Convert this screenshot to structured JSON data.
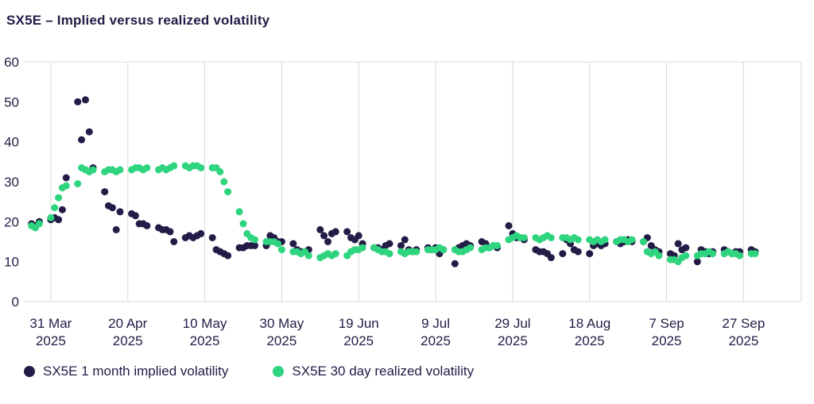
{
  "page": {
    "background": "#ffffff"
  },
  "chart_data": {
    "type": "scatter",
    "title": "SX5E – Implied versus realized volatility",
    "title_color": "#221c46",
    "axis_label_color": "#221c46",
    "grid_color": "#d9d9d9",
    "ylim": [
      0,
      60
    ],
    "y_ticks": [
      0,
      10,
      20,
      30,
      40,
      50,
      60
    ],
    "x_domain": [
      "2025-03-24",
      "2025-10-12"
    ],
    "x_ticks": [
      {
        "date": "2025-03-31",
        "line1": "31 Mar",
        "line2": "2025"
      },
      {
        "date": "2025-04-20",
        "line1": "20 Apr",
        "line2": "2025"
      },
      {
        "date": "2025-05-10",
        "line1": "10 May",
        "line2": "2025"
      },
      {
        "date": "2025-05-30",
        "line1": "30 May",
        "line2": "2025"
      },
      {
        "date": "2025-06-19",
        "line1": "19 Jun",
        "line2": "2025"
      },
      {
        "date": "2025-07-09",
        "line1": "9 Jul",
        "line2": "2025"
      },
      {
        "date": "2025-07-29",
        "line1": "29 Jul",
        "line2": "2025"
      },
      {
        "date": "2025-08-18",
        "line1": "18 Aug",
        "line2": "2025"
      },
      {
        "date": "2025-09-07",
        "line1": "7 Sep",
        "line2": "2025"
      },
      {
        "date": "2025-09-27",
        "line1": "27 Sep",
        "line2": "2025"
      }
    ],
    "grid": "vertical-only",
    "legend_position": "bottom-left",
    "marker_radius": 4.5,
    "series_start_date": "2025-03-26",
    "frequency": "weekdays",
    "series": [
      {
        "name": "SX5E 1 month implied volatility",
        "color": "#221c46",
        "values": [
          19.5,
          19,
          20,
          20.5,
          21,
          20.5,
          23,
          31,
          50,
          40.5,
          50.5,
          42.5,
          33.5,
          27.5,
          24,
          23.5,
          18,
          22.5,
          22,
          21.5,
          19.5,
          19.5,
          19,
          18.5,
          18,
          18,
          17.5,
          15,
          16,
          16.5,
          16,
          16.5,
          17,
          16,
          13,
          12.5,
          12,
          11.5,
          13.5,
          13.5,
          14,
          14,
          14,
          14,
          16.5,
          16,
          15,
          15,
          14.5,
          13,
          12.5,
          12.5,
          13,
          18,
          16.5,
          15,
          17,
          17.5,
          17.5,
          16,
          15.5,
          16.5,
          14.5,
          13.5,
          13.5,
          13,
          14,
          14.5,
          14,
          15.5,
          13,
          12.5,
          13,
          13.5,
          13,
          13.5,
          12,
          13,
          9.5,
          13.5,
          14,
          14.5,
          14,
          15,
          14.5,
          13.5,
          14,
          13.5,
          19,
          17,
          16,
          16,
          15.5,
          13,
          12.5,
          12.5,
          12,
          11,
          12,
          15.5,
          14.5,
          13,
          12.5,
          12,
          14,
          14.5,
          14,
          14.5,
          15,
          14.5,
          15,
          15.5,
          15,
          15,
          16,
          14,
          13,
          12.5,
          12,
          11.5,
          14.5,
          13,
          13.5,
          10,
          13,
          12.5,
          12,
          12.5,
          13,
          12.5,
          12,
          12.5,
          12.5,
          13,
          12.5
        ]
      },
      {
        "name": "SX5E 30 day realized volatility",
        "color": "#2ed47e",
        "values": [
          19,
          18.5,
          19.5,
          21,
          23.5,
          26,
          28.5,
          29,
          29.5,
          33.5,
          33,
          32.5,
          33,
          32.5,
          33,
          33,
          32.5,
          33,
          33,
          33.5,
          33.5,
          33,
          33.5,
          33,
          33.5,
          33,
          33.5,
          34,
          34,
          33.5,
          34,
          34,
          33.5,
          33.5,
          33.5,
          32.5,
          30,
          27.5,
          22.5,
          19.5,
          17,
          16,
          15.5,
          15,
          15,
          15,
          14.5,
          13,
          12.5,
          12.5,
          12,
          12.5,
          11.5,
          11,
          11.5,
          12,
          11.5,
          12,
          11.5,
          12.5,
          13,
          13,
          13.5,
          13.5,
          13,
          12.5,
          12.5,
          12,
          12.5,
          12,
          12.5,
          12.5,
          12.5,
          13,
          13,
          13,
          13.5,
          13,
          13,
          12.5,
          12.5,
          13,
          13.5,
          13,
          13.5,
          13.5,
          14,
          14,
          15.5,
          16,
          16.5,
          16,
          16,
          16,
          15.5,
          16,
          16.5,
          16,
          16,
          16,
          15.5,
          16,
          15.5,
          15.5,
          15,
          15.5,
          15,
          15.5,
          15,
          15.5,
          15.5,
          15,
          15.5,
          15,
          12.5,
          12,
          12.5,
          11.5,
          10.5,
          10.5,
          10,
          11,
          11.5,
          11.5,
          12,
          12,
          12.5,
          12,
          12,
          12.5,
          12,
          12,
          11.5,
          12,
          12
        ]
      }
    ]
  }
}
